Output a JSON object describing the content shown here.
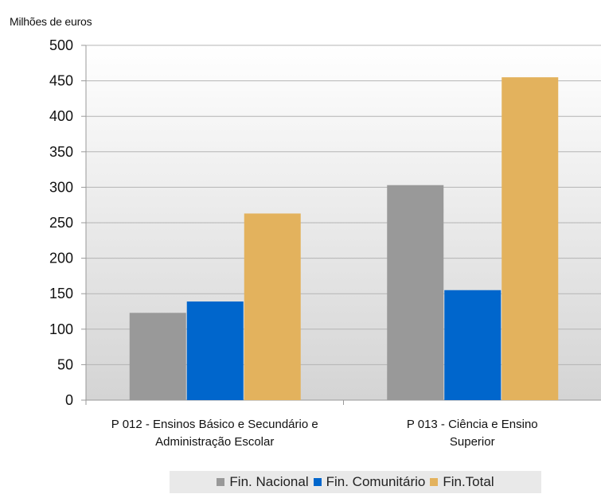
{
  "chart_data": {
    "type": "bar",
    "unit_label": "Milhões de euros",
    "categories": [
      [
        "P 012 - Ensinos Básico e Secundário e",
        "Administração Escolar"
      ],
      [
        "P 013 - Ciência e Ensino",
        "Superior"
      ]
    ],
    "series": [
      {
        "name": "Fin. Nacional",
        "color": "#999999",
        "values": [
          123,
          303
        ]
      },
      {
        "name": "Fin. Comunitário",
        "color": "#0066cc",
        "values": [
          139,
          155
        ]
      },
      {
        "name": "Fin.Total",
        "color": "#e3b25d",
        "values": [
          263,
          455
        ]
      }
    ],
    "ylim": [
      0,
      500
    ],
    "yticks": [
      0,
      50,
      100,
      150,
      200,
      250,
      300,
      350,
      400,
      450,
      500
    ],
    "grid": true,
    "legend_position": "bottom"
  }
}
